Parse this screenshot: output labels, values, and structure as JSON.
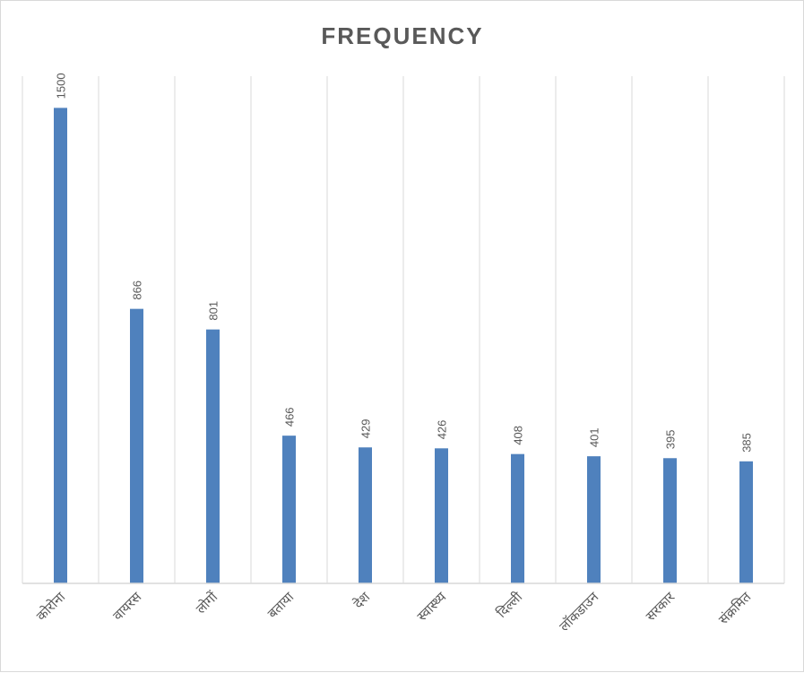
{
  "chart_data": {
    "type": "bar",
    "title": "FREQUENCY",
    "categories": [
      "कोरोना",
      "वायरस",
      "लोगों",
      "बताया",
      "देश",
      "स्वास्थ्य",
      "दिल्ली",
      "लॉकडाउन",
      "सरकार",
      "संक्रमित"
    ],
    "values": [
      1500,
      866,
      801,
      466,
      429,
      426,
      408,
      401,
      395,
      385
    ],
    "ylim": [
      0,
      1600
    ],
    "grid": "vertical",
    "legend": "none",
    "data_labels": "rotated-above-bars",
    "bar_color": "#4f81bd",
    "grid_color": "#d9d9d9",
    "text_color": "#595959"
  }
}
